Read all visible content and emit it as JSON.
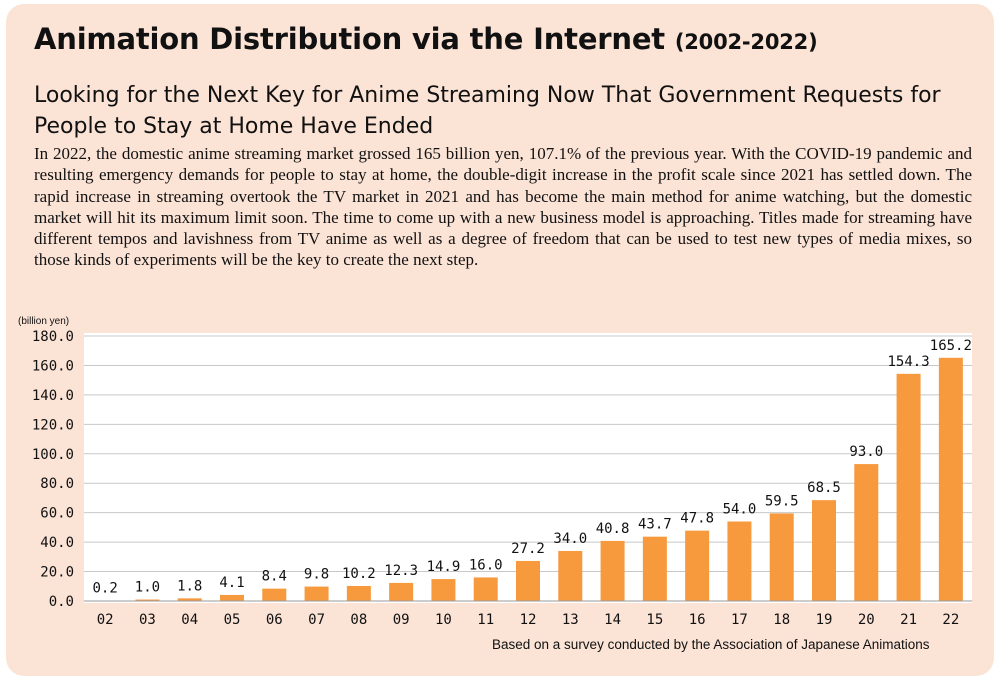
{
  "header": {
    "title": "Animation Distribution via the Internet",
    "title_years": "(2002-2022)",
    "subtitle": "Looking for the Next Key for Anime Streaming Now That Government Requests for People to Stay at Home Have Ended",
    "body": "In 2022, the domestic anime streaming market grossed 165 billion yen, 107.1% of the previous year. With the COVID-19 pandemic and resulting emergency demands for people to stay at home, the double-digit increase in the profit scale since 2021 has settled down. The rapid increase in streaming overtook the TV market in 2021 and has become the main method for anime watching, but the domestic market will hit its maximum limit soon. The time to come up with a new business model is approaching. Titles made for streaming have different tempos and lavishness from TV anime as well as a degree of freedom that can be used to test new types of media mixes, so those kinds of experiments will be the key to create the next step."
  },
  "chart_data": {
    "type": "bar",
    "title": "Animation Distribution via the Internet (2002-2022)",
    "ylabel": "(billion yen)",
    "xlabel": "",
    "ylim": [
      0,
      180
    ],
    "yticks": [
      "0.0",
      "20.0",
      "40.0",
      "60.0",
      "80.0",
      "100.0",
      "120.0",
      "140.0",
      "160.0",
      "180.0"
    ],
    "categories": [
      "02",
      "03",
      "04",
      "05",
      "06",
      "07",
      "08",
      "09",
      "10",
      "11",
      "12",
      "13",
      "14",
      "15",
      "16",
      "17",
      "18",
      "19",
      "20",
      "21",
      "22"
    ],
    "values": [
      0.2,
      1.0,
      1.8,
      4.1,
      8.4,
      9.8,
      10.2,
      12.3,
      14.9,
      16.0,
      27.2,
      34.0,
      40.8,
      43.7,
      47.8,
      54.0,
      59.5,
      68.5,
      93.0,
      154.3,
      165.2
    ],
    "value_labels": [
      "0.2",
      "1.0",
      "1.8",
      "4.1",
      "8.4",
      "9.8",
      "10.2",
      "12.3",
      "14.9",
      "16.0",
      "27.2",
      "34.0",
      "40.8",
      "43.7",
      "47.8",
      "54.0",
      "59.5",
      "68.5",
      "93.0",
      "154.3",
      "165.2"
    ],
    "grid": true,
    "bar_color": "#f79a3e",
    "grid_color": "#c8c8c8"
  },
  "footer": {
    "source": "Based on a survey conducted by the Association of Japanese Animations"
  }
}
